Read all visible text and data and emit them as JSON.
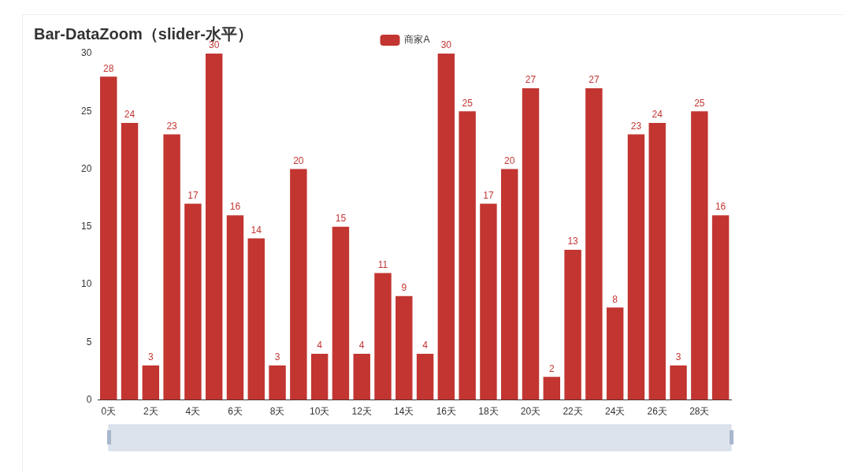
{
  "chart_data": {
    "type": "bar",
    "title": "Bar-DataZoom（slider-水平）",
    "categories": [
      "0天",
      null,
      "2天",
      null,
      "4天",
      null,
      "6天",
      null,
      "8天",
      null,
      "10天",
      null,
      "12天",
      null,
      "14天",
      null,
      "16天",
      null,
      "18天",
      null,
      "20天",
      null,
      "22天",
      null,
      "24天",
      null,
      "26天",
      null,
      "28天",
      null
    ],
    "series": [
      {
        "name": "商家A",
        "color": "#c23531",
        "values": [
          28,
          24,
          3,
          23,
          17,
          30,
          16,
          14,
          3,
          20,
          4,
          15,
          4,
          11,
          9,
          4,
          30,
          25,
          17,
          20,
          27,
          2,
          13,
          27,
          8,
          23,
          24,
          3,
          25,
          16
        ]
      }
    ],
    "ylim": [
      0,
      30
    ],
    "yticks": [
      0,
      5,
      10,
      15,
      20,
      25,
      30
    ],
    "legend": "top",
    "data_labels": true
  }
}
